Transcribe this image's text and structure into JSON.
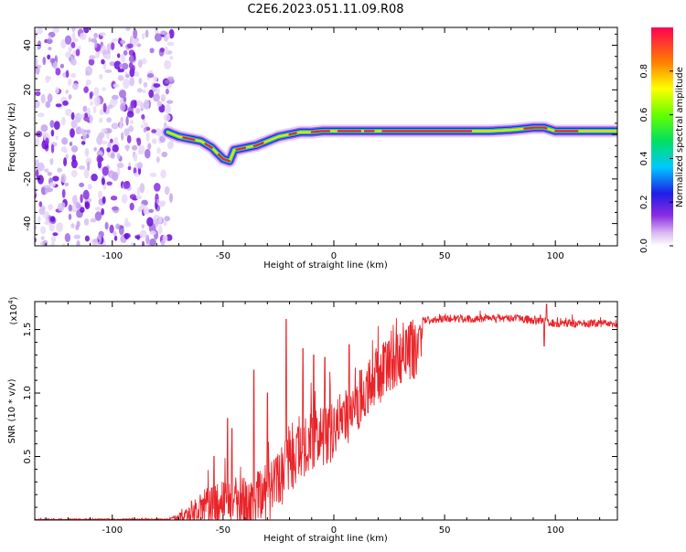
{
  "figure": {
    "title": "C2E6.2023.051.11.09.R08"
  },
  "colorbar": {
    "label": "Normalized spectral amplitude",
    "ticks": [
      "0.0",
      "0.2",
      "0.4",
      "0.6",
      "0.8"
    ],
    "tick_values": [
      0.0,
      0.2,
      0.4,
      0.6,
      0.8
    ],
    "range": [
      0,
      1
    ]
  },
  "chart_data": [
    {
      "type": "heatmap",
      "xlabel": "Height of straight line (km)",
      "ylabel": "Frequency (Hz)",
      "xlim": [
        -135,
        128
      ],
      "ylim": [
        -50,
        48
      ],
      "x_ticks": [
        "-100",
        "-50",
        "0",
        "50",
        "100"
      ],
      "x_tick_values": [
        -100,
        -50,
        0,
        50,
        100
      ],
      "y_ticks": [
        "40",
        "20",
        "0",
        "-20",
        "-40"
      ],
      "y_tick_values": [
        40,
        20,
        0,
        -20,
        -40
      ],
      "noise_region_x": [
        -135,
        -73
      ],
      "ridge": {
        "x": [
          -75,
          -70,
          -65,
          -60,
          -55,
          -50,
          -47,
          -45,
          -40,
          -35,
          -30,
          -25,
          -20,
          -15,
          -10,
          -5,
          0,
          10,
          20,
          30,
          40,
          50,
          60,
          70,
          80,
          90,
          95,
          100,
          110,
          120,
          128
        ],
        "y": [
          1,
          -1,
          -2,
          -3,
          -6,
          -11,
          -12,
          -7,
          -6,
          -5,
          -3,
          -1,
          0,
          1,
          1,
          1.5,
          1.5,
          1.5,
          1.5,
          1.5,
          1.5,
          1.5,
          1.5,
          1.5,
          2,
          3,
          3,
          1.5,
          1.5,
          1.5,
          1.5
        ]
      }
    },
    {
      "type": "line",
      "xlabel": "Height of straight line (km)",
      "ylabel": "SNR (10 * v/v)",
      "y_multiplier": "(x10",
      "y_multiplier_exp": "4",
      "y_multiplier_close": ")",
      "xlim": [
        -135,
        128
      ],
      "ylim": [
        0,
        1.72
      ],
      "x_ticks": [
        "-100",
        "-50",
        "0",
        "50",
        "100"
      ],
      "x_tick_values": [
        -100,
        -50,
        0,
        50,
        100
      ],
      "y_ticks": [
        "0.5",
        "1.0",
        "1.5"
      ],
      "y_tick_values": [
        0.5,
        1.0,
        1.5
      ],
      "series": [
        {
          "color": "#e8252a",
          "envelope_x": [
            -135,
            -75,
            -70,
            -65,
            -60,
            -55,
            -50,
            -45,
            -40,
            -35,
            -30,
            -25,
            -20,
            -15,
            -10,
            -5,
            0,
            5,
            10,
            15,
            20,
            25,
            30,
            35,
            40,
            50,
            60,
            80,
            95,
            100,
            110,
            128
          ],
          "envelope_y": [
            0.01,
            0.01,
            0.05,
            0.12,
            0.22,
            0.3,
            0.3,
            0.35,
            0.33,
            0.4,
            0.45,
            0.55,
            0.7,
            0.78,
            0.85,
            0.9,
            0.95,
            1.05,
            1.15,
            1.28,
            1.38,
            1.48,
            1.55,
            1.6,
            1.6,
            1.62,
            1.62,
            1.62,
            1.6,
            1.58,
            1.58,
            1.58
          ],
          "spikes": [
            {
              "x": -54,
              "y": 0.5
            },
            {
              "x": -48,
              "y": 0.8
            },
            {
              "x": -46,
              "y": 0.72
            },
            {
              "x": -36,
              "y": 1.18
            },
            {
              "x": -30,
              "y": 1.0
            },
            {
              "x": -21.5,
              "y": 1.58
            },
            {
              "x": -14,
              "y": 1.35
            },
            {
              "x": -9,
              "y": 1.3
            },
            {
              "x": -4,
              "y": 1.28
            },
            {
              "x": 7,
              "y": 1.38
            },
            {
              "x": 96,
              "y": 1.7
            },
            {
              "x": 95,
              "y": 1.37
            }
          ]
        }
      ]
    }
  ]
}
